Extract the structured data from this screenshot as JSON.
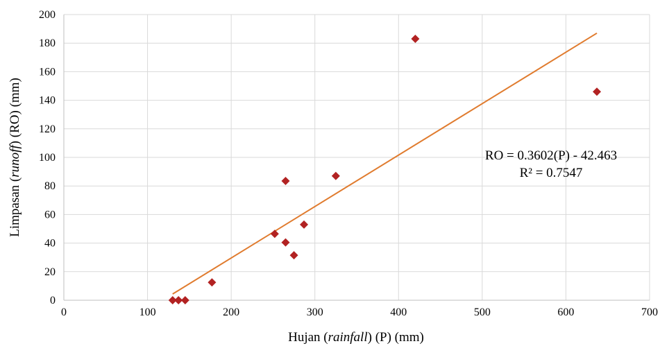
{
  "chart_data": {
    "type": "scatter",
    "xlabel": {
      "pre": "Hujan (",
      "italic": "rainfall",
      "post": ") (P) (mm)"
    },
    "ylabel": {
      "pre": "Limpasan (",
      "italic": "runoff",
      "post": ") (RO) (mm)"
    },
    "xlim": [
      0,
      700
    ],
    "ylim": [
      0,
      200
    ],
    "xticks": [
      0,
      100,
      200,
      300,
      400,
      500,
      600,
      700
    ],
    "yticks": [
      0,
      20,
      40,
      60,
      80,
      100,
      120,
      140,
      160,
      180,
      200
    ],
    "grid": true,
    "marker_color": "#b22222",
    "trendline_color": "#e07b2e",
    "points": [
      {
        "x": 130,
        "y": 0
      },
      {
        "x": 137,
        "y": 0
      },
      {
        "x": 145,
        "y": 0
      },
      {
        "x": 177,
        "y": 12.5
      },
      {
        "x": 252,
        "y": 46.5
      },
      {
        "x": 265,
        "y": 40.5
      },
      {
        "x": 265,
        "y": 83.5
      },
      {
        "x": 275,
        "y": 31.5
      },
      {
        "x": 287,
        "y": 53
      },
      {
        "x": 325,
        "y": 87
      },
      {
        "x": 420,
        "y": 183
      },
      {
        "x": 637,
        "y": 146
      }
    ],
    "trendline": {
      "slope": 0.3602,
      "intercept": -42.463,
      "x_range": [
        130,
        637
      ]
    },
    "equation": "RO = 0.3602(P) - 42.463",
    "r_squared": "R² = 0.7547"
  }
}
